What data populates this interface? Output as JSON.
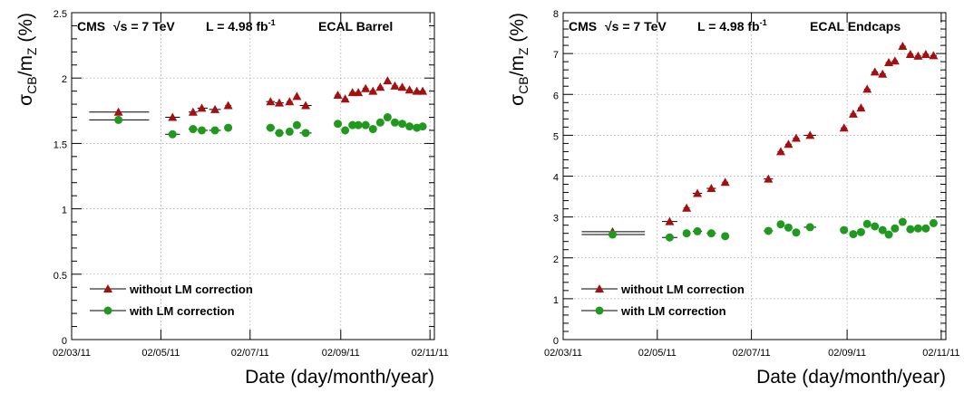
{
  "colors": {
    "triangle": "#a50f0f",
    "circle": "#1f9a1f",
    "error_bar": "#000000"
  },
  "chart_data": [
    {
      "type": "scatter",
      "title": "",
      "header": {
        "experiment": "CMS",
        "energy": "√s = 7 TeV",
        "lumi": "L = 4.98 fb",
        "lumi_sup": "-1",
        "region": "ECAL Barrel"
      },
      "ylabel": {
        "main": "σ",
        "sub1": "CB",
        "mid": "/m",
        "sub2": "Z",
        "unit": " (%)"
      },
      "xlabel": "Date (day/month/year)",
      "xlim": [
        "2011-03-02",
        "2011-11-05"
      ],
      "ylim": [
        0,
        2.5
      ],
      "yticks": [
        0,
        0.5,
        1,
        1.5,
        2,
        2.5
      ],
      "ytick_labels": [
        "0",
        "0.5",
        "1",
        "1.5",
        "2",
        "2.5"
      ],
      "xticks": [
        "2011-03-02",
        "2011-05-02",
        "2011-07-02",
        "2011-09-02",
        "2011-11-02"
      ],
      "xtick_labels": [
        "02/03/11",
        "02/05/11",
        "02/07/11",
        "02/09/11",
        "02/11/11"
      ],
      "grid": true,
      "legend": "bottom-left",
      "series": [
        {
          "name": "without LM correction",
          "marker": "triangle",
          "points": [
            [
              "2011-04-03",
              1.74,
              "2011-03-14",
              "2011-04-24"
            ],
            [
              "2011-05-10",
              1.7,
              "2011-05-05",
              "2011-05-15"
            ],
            [
              "2011-05-24",
              1.74,
              "2011-05-21",
              "2011-05-27"
            ],
            [
              "2011-05-30",
              1.77,
              "2011-05-27",
              "2011-06-03"
            ],
            [
              "2011-06-08",
              1.76,
              "2011-06-04",
              "2011-06-12"
            ],
            [
              "2011-06-17",
              1.79,
              "2011-06-15",
              "2011-06-19"
            ],
            [
              "2011-07-16",
              1.82,
              "2011-07-13",
              "2011-07-19"
            ],
            [
              "2011-07-22",
              1.81,
              "2011-07-19",
              "2011-07-25"
            ],
            [
              "2011-07-29",
              1.82,
              "2011-07-27",
              "2011-07-31"
            ],
            [
              "2011-08-03",
              1.86,
              "2011-08-02",
              "2011-08-04"
            ],
            [
              "2011-08-09",
              1.79,
              "2011-08-05",
              "2011-08-13"
            ],
            [
              "2011-08-31",
              1.87,
              "2011-08-29",
              "2011-09-02"
            ],
            [
              "2011-09-05",
              1.84,
              "2011-09-03",
              "2011-09-07"
            ],
            [
              "2011-09-10",
              1.89,
              "2011-09-08",
              "2011-09-12"
            ],
            [
              "2011-09-14",
              1.89,
              "2011-09-12",
              "2011-09-16"
            ],
            [
              "2011-09-19",
              1.92,
              "2011-09-17",
              "2011-09-21"
            ],
            [
              "2011-09-24",
              1.9,
              "2011-09-22",
              "2011-09-26"
            ],
            [
              "2011-09-29",
              1.93,
              "2011-09-27",
              "2011-10-01"
            ],
            [
              "2011-10-04",
              1.98,
              "2011-10-03",
              "2011-10-05"
            ],
            [
              "2011-10-09",
              1.94,
              "2011-10-07",
              "2011-10-11"
            ],
            [
              "2011-10-14",
              1.93,
              "2011-10-12",
              "2011-10-16"
            ],
            [
              "2011-10-19",
              1.91,
              "2011-10-17",
              "2011-10-21"
            ],
            [
              "2011-10-24",
              1.9,
              "2011-10-22",
              "2011-10-26"
            ],
            [
              "2011-10-28",
              1.9,
              "2011-10-26",
              "2011-10-30"
            ]
          ]
        },
        {
          "name": "with LM correction",
          "marker": "circle",
          "points": [
            [
              "2011-04-03",
              1.68,
              "2011-03-14",
              "2011-04-24"
            ],
            [
              "2011-05-10",
              1.57,
              "2011-05-05",
              "2011-05-15"
            ],
            [
              "2011-05-24",
              1.61,
              "2011-05-21",
              "2011-05-27"
            ],
            [
              "2011-05-30",
              1.6,
              "2011-05-27",
              "2011-06-03"
            ],
            [
              "2011-06-08",
              1.6,
              "2011-06-04",
              "2011-06-12"
            ],
            [
              "2011-06-17",
              1.62,
              "2011-06-15",
              "2011-06-19"
            ],
            [
              "2011-07-16",
              1.62,
              "2011-07-13",
              "2011-07-19"
            ],
            [
              "2011-07-22",
              1.58,
              "2011-07-19",
              "2011-07-25"
            ],
            [
              "2011-07-29",
              1.59,
              "2011-07-27",
              "2011-07-31"
            ],
            [
              "2011-08-03",
              1.64,
              "2011-08-02",
              "2011-08-04"
            ],
            [
              "2011-08-09",
              1.58,
              "2011-08-05",
              "2011-08-13"
            ],
            [
              "2011-08-31",
              1.65,
              "2011-08-29",
              "2011-09-02"
            ],
            [
              "2011-09-05",
              1.6,
              "2011-09-03",
              "2011-09-07"
            ],
            [
              "2011-09-10",
              1.64,
              "2011-09-08",
              "2011-09-12"
            ],
            [
              "2011-09-14",
              1.64,
              "2011-09-12",
              "2011-09-16"
            ],
            [
              "2011-09-19",
              1.64,
              "2011-09-17",
              "2011-09-21"
            ],
            [
              "2011-09-24",
              1.61,
              "2011-09-22",
              "2011-09-26"
            ],
            [
              "2011-09-29",
              1.66,
              "2011-09-27",
              "2011-10-01"
            ],
            [
              "2011-10-04",
              1.7,
              "2011-10-03",
              "2011-10-05"
            ],
            [
              "2011-10-09",
              1.66,
              "2011-10-07",
              "2011-10-11"
            ],
            [
              "2011-10-14",
              1.65,
              "2011-10-12",
              "2011-10-16"
            ],
            [
              "2011-10-19",
              1.63,
              "2011-10-17",
              "2011-10-21"
            ],
            [
              "2011-10-24",
              1.62,
              "2011-10-22",
              "2011-10-26"
            ],
            [
              "2011-10-28",
              1.63,
              "2011-10-26",
              "2011-10-30"
            ]
          ]
        }
      ]
    },
    {
      "type": "scatter",
      "title": "",
      "header": {
        "experiment": "CMS",
        "energy": "√s = 7 TeV",
        "lumi": "L = 4.98 fb",
        "lumi_sup": "-1",
        "region": "ECAL Endcaps"
      },
      "ylabel": {
        "main": "σ",
        "sub1": "CB",
        "mid": "/m",
        "sub2": "Z",
        "unit": " (%)"
      },
      "xlabel": "Date (day/month/year)",
      "xlim": [
        "2011-03-02",
        "2011-11-05"
      ],
      "ylim": [
        0,
        8
      ],
      "yticks": [
        0,
        1,
        2,
        3,
        4,
        5,
        6,
        7,
        8
      ],
      "ytick_labels": [
        "0",
        "1",
        "2",
        "3",
        "4",
        "5",
        "6",
        "7",
        "8"
      ],
      "xticks": [
        "2011-03-02",
        "2011-05-02",
        "2011-07-02",
        "2011-09-02",
        "2011-11-02"
      ],
      "xtick_labels": [
        "02/03/11",
        "02/05/11",
        "02/07/11",
        "02/09/11",
        "02/11/11"
      ],
      "grid": true,
      "legend": "bottom-left",
      "series": [
        {
          "name": "without LM correction",
          "marker": "triangle",
          "points": [
            [
              "2011-04-03",
              2.64,
              "2011-03-14",
              "2011-04-24"
            ],
            [
              "2011-05-10",
              2.89,
              "2011-05-05",
              "2011-05-15"
            ],
            [
              "2011-05-21",
              3.22,
              "2011-05-19",
              "2011-05-23"
            ],
            [
              "2011-05-28",
              3.58,
              "2011-05-25",
              "2011-05-31"
            ],
            [
              "2011-06-06",
              3.7,
              "2011-06-03",
              "2011-06-09"
            ],
            [
              "2011-06-15",
              3.85,
              "2011-06-13",
              "2011-06-17"
            ],
            [
              "2011-07-13",
              3.93,
              "2011-07-10",
              "2011-07-16"
            ],
            [
              "2011-07-21",
              4.6,
              "2011-07-19",
              "2011-07-23"
            ],
            [
              "2011-07-26",
              4.78,
              "2011-07-24",
              "2011-07-28"
            ],
            [
              "2011-07-31",
              4.93,
              "2011-07-29",
              "2011-08-02"
            ],
            [
              "2011-08-09",
              5.0,
              "2011-08-05",
              "2011-08-13"
            ],
            [
              "2011-08-31",
              5.18,
              "2011-08-29",
              "2011-09-02"
            ],
            [
              "2011-09-06",
              5.52,
              "2011-09-04",
              "2011-09-08"
            ],
            [
              "2011-09-11",
              5.67,
              "2011-09-09",
              "2011-09-13"
            ],
            [
              "2011-09-15",
              6.13,
              "2011-09-13",
              "2011-09-17"
            ],
            [
              "2011-09-20",
              6.55,
              "2011-09-18",
              "2011-09-22"
            ],
            [
              "2011-09-25",
              6.5,
              "2011-09-23",
              "2011-09-27"
            ],
            [
              "2011-09-29",
              6.78,
              "2011-09-27",
              "2011-10-01"
            ],
            [
              "2011-10-03",
              6.82,
              "2011-10-01",
              "2011-10-05"
            ],
            [
              "2011-10-08",
              7.18,
              "2011-10-06",
              "2011-10-10"
            ],
            [
              "2011-10-13",
              6.98,
              "2011-10-11",
              "2011-10-15"
            ],
            [
              "2011-10-18",
              6.94,
              "2011-10-16",
              "2011-10-20"
            ],
            [
              "2011-10-23",
              6.98,
              "2011-10-21",
              "2011-10-25"
            ],
            [
              "2011-10-28",
              6.95,
              "2011-10-26",
              "2011-10-30"
            ]
          ]
        },
        {
          "name": "with LM correction",
          "marker": "circle",
          "points": [
            [
              "2011-04-03",
              2.57,
              "2011-03-14",
              "2011-04-24"
            ],
            [
              "2011-05-10",
              2.5,
              "2011-05-05",
              "2011-05-15"
            ],
            [
              "2011-05-21",
              2.6,
              "2011-05-19",
              "2011-05-23"
            ],
            [
              "2011-05-28",
              2.65,
              "2011-05-25",
              "2011-05-31"
            ],
            [
              "2011-06-06",
              2.6,
              "2011-06-03",
              "2011-06-09"
            ],
            [
              "2011-06-15",
              2.53,
              "2011-06-13",
              "2011-06-17"
            ],
            [
              "2011-07-13",
              2.66,
              "2011-07-10",
              "2011-07-16"
            ],
            [
              "2011-07-21",
              2.82,
              "2011-07-19",
              "2011-07-23"
            ],
            [
              "2011-07-26",
              2.74,
              "2011-07-24",
              "2011-07-28"
            ],
            [
              "2011-07-31",
              2.62,
              "2011-07-29",
              "2011-08-02"
            ],
            [
              "2011-08-09",
              2.75,
              "2011-08-05",
              "2011-08-13"
            ],
            [
              "2011-08-31",
              2.68,
              "2011-08-29",
              "2011-09-02"
            ],
            [
              "2011-09-06",
              2.58,
              "2011-09-04",
              "2011-09-08"
            ],
            [
              "2011-09-11",
              2.63,
              "2011-09-09",
              "2011-09-13"
            ],
            [
              "2011-09-15",
              2.83,
              "2011-09-13",
              "2011-09-17"
            ],
            [
              "2011-09-20",
              2.77,
              "2011-09-18",
              "2011-09-22"
            ],
            [
              "2011-09-25",
              2.68,
              "2011-09-23",
              "2011-09-27"
            ],
            [
              "2011-09-29",
              2.57,
              "2011-09-27",
              "2011-10-01"
            ],
            [
              "2011-10-03",
              2.72,
              "2011-10-01",
              "2011-10-05"
            ],
            [
              "2011-10-08",
              2.88,
              "2011-10-06",
              "2011-10-10"
            ],
            [
              "2011-10-13",
              2.7,
              "2011-10-11",
              "2011-10-15"
            ],
            [
              "2011-10-18",
              2.72,
              "2011-10-16",
              "2011-10-20"
            ],
            [
              "2011-10-23",
              2.72,
              "2011-10-21",
              "2011-10-25"
            ],
            [
              "2011-10-28",
              2.85,
              "2011-10-26",
              "2011-10-30"
            ]
          ]
        }
      ]
    }
  ]
}
